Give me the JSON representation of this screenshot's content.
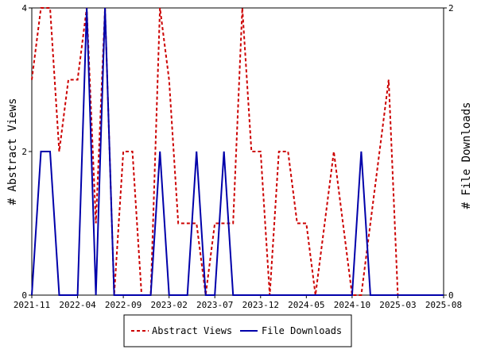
{
  "chart_data": {
    "type": "line",
    "title": "",
    "x_tick_labels": [
      "2021-11",
      "2022-04",
      "2022-09",
      "2023-02",
      "2023-07",
      "2023-12",
      "2024-05",
      "2024-10",
      "2025-03",
      "2025-08"
    ],
    "y_left": {
      "label": "# Abstract Views",
      "ticks": [
        "0",
        "2",
        "4"
      ],
      "ylim": [
        0,
        4
      ]
    },
    "y_right": {
      "label": "# File Downloads",
      "ticks": [
        "0",
        "2"
      ],
      "ylim": [
        0,
        2
      ]
    },
    "legend_position": "bottom",
    "series": [
      {
        "name": "Abstract Views",
        "axis": "left",
        "color": "#cc0000",
        "style": "dashed",
        "values": [
          3,
          4,
          4,
          2,
          3,
          3,
          4,
          1,
          4,
          0,
          2,
          2,
          0,
          0,
          4,
          3,
          1,
          1,
          1,
          0,
          1,
          1,
          1,
          4,
          2,
          2,
          0,
          2,
          2,
          1,
          1,
          0,
          1,
          2,
          1,
          0,
          0,
          1,
          2,
          3,
          0,
          0,
          0,
          0,
          0,
          0
        ]
      },
      {
        "name": "File Downloads",
        "axis": "right",
        "color": "#0000aa",
        "style": "solid",
        "values": [
          0,
          1,
          1,
          0,
          0,
          0,
          2,
          0,
          2,
          0,
          0,
          0,
          0,
          0,
          1,
          0,
          0,
          0,
          1,
          0,
          0,
          1,
          0,
          0,
          0,
          0,
          0,
          0,
          0,
          0,
          0,
          0,
          0,
          0,
          0,
          0,
          1,
          0,
          0,
          0,
          0,
          0,
          0,
          0,
          0,
          0
        ]
      }
    ]
  }
}
